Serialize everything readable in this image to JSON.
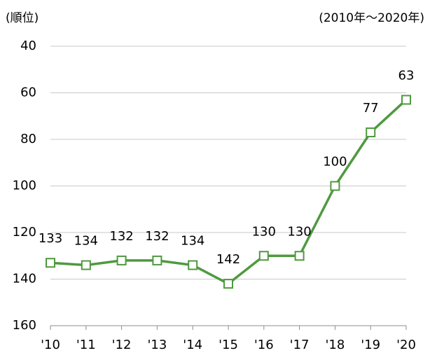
{
  "chart_data": {
    "type": "line",
    "y_label": "(順位)",
    "annotation": "(2010年～2020年)",
    "categories": [
      "'10",
      "'11",
      "'12",
      "'13",
      "'14",
      "'15",
      "'16",
      "'17",
      "'18",
      "'19",
      "'20"
    ],
    "values": [
      133,
      134,
      132,
      132,
      134,
      142,
      130,
      130,
      100,
      77,
      63
    ],
    "color": "#4e9a3f",
    "ylim": [
      160,
      40
    ],
    "yticks": [
      40,
      60,
      80,
      100,
      120,
      140,
      160
    ],
    "grid": true
  }
}
